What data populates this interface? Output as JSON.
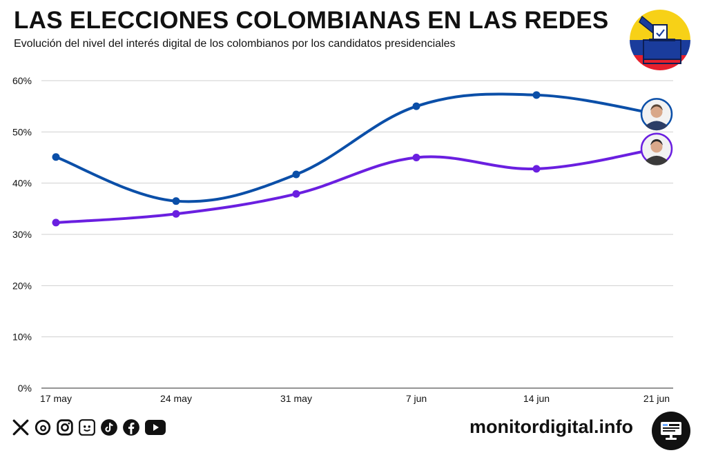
{
  "header": {
    "title": "LAS ELECCIONES COLOMBIANAS EN LAS REDES",
    "subtitle": "Evolución del nivel del interés digital de los colombianos por los candidatos presidenciales"
  },
  "badge": {
    "icon": "ballot-box-icon",
    "colors": [
      "#F7D117",
      "#1A3C9C",
      "#E5202D"
    ]
  },
  "chart_data": {
    "type": "line",
    "categories": [
      "17 may",
      "24 may",
      "31 may",
      "7 jun",
      "14 jun",
      "21 jun"
    ],
    "ylim": [
      0,
      60
    ],
    "yticks": [
      "0%",
      "10%",
      "20%",
      "30%",
      "40%",
      "50%",
      "60%"
    ],
    "grid": true,
    "series": [
      {
        "color": "#0B4FA8",
        "avatar": "candidate-photo-icon",
        "values": [
          45.1,
          36.5,
          41.7,
          55.0,
          57.2,
          53.5
        ]
      },
      {
        "color": "#6A1FE0",
        "avatar": "candidate-photo-icon",
        "values": [
          32.3,
          34.0,
          37.9,
          45.0,
          42.8,
          46.7
        ]
      }
    ]
  },
  "footer": {
    "social_icons": [
      "x-icon",
      "threads-icon",
      "instagram-icon",
      "bluesky-icon",
      "tiktok-icon",
      "facebook-icon",
      "youtube-icon"
    ],
    "site": "monitordigital.info",
    "logo_icon": "monitor-icon"
  }
}
